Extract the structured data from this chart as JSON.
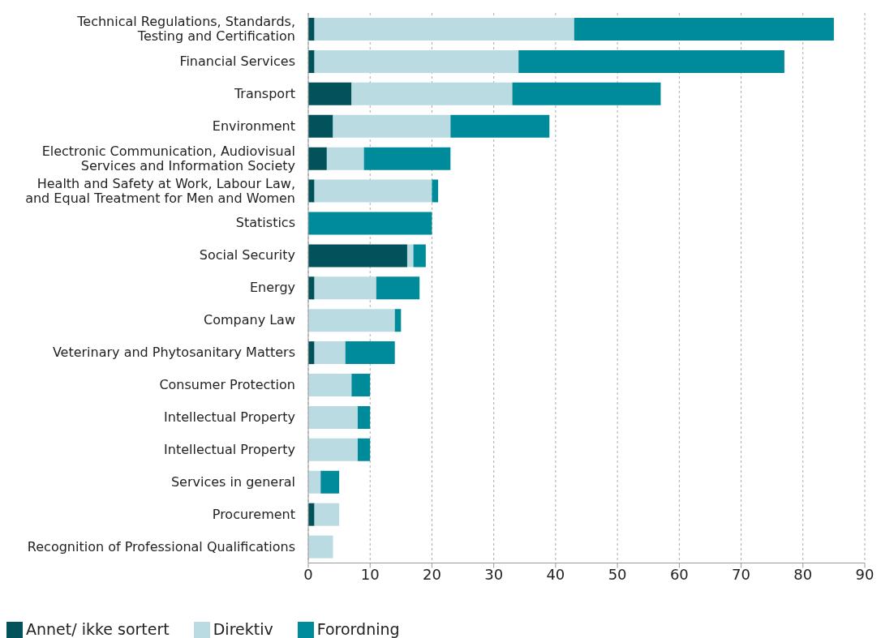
{
  "chart_data": {
    "type": "bar",
    "orientation": "horizontal",
    "stacked": true,
    "categories": [
      "Technical Regulations, Standards,\nTesting and Certification",
      "Financial Services",
      "Transport",
      "Environment",
      "Electronic Communication, Audiovisual\nServices and Information Society",
      "Health and Safety at Work, Labour Law,\nand Equal Treatment for Men and Women",
      "Statistics",
      "Social Security",
      "Energy",
      "Company Law",
      "Veterinary and Phytosanitary Matters",
      "Consumer Protection",
      "Intellectual Property",
      "Intellectual Property",
      "Services in general",
      "Procurement",
      "Recognition of Professional Qualifications"
    ],
    "series": [
      {
        "name": "Annet/ ikke sortert",
        "color": "#02525c",
        "values": [
          1,
          1,
          7,
          4,
          3,
          1,
          0,
          16,
          1,
          0,
          1,
          0,
          0,
          0,
          0,
          1,
          0
        ]
      },
      {
        "name": "Direktiv",
        "color": "#badbe1",
        "values": [
          42,
          33,
          26,
          19,
          6,
          19,
          0,
          1,
          10,
          14,
          5,
          7,
          8,
          8,
          2,
          4,
          4
        ]
      },
      {
        "name": "Forordning",
        "color": "#008b9b",
        "values": [
          42,
          43,
          24,
          16,
          14,
          1,
          20,
          2,
          7,
          1,
          8,
          3,
          2,
          2,
          3,
          0,
          0
        ]
      }
    ],
    "xlim": [
      0,
      90
    ],
    "xticks": [
      0,
      10,
      20,
      30,
      40,
      50,
      60,
      70,
      80,
      90
    ],
    "grid": "x",
    "legend": "bottom"
  }
}
